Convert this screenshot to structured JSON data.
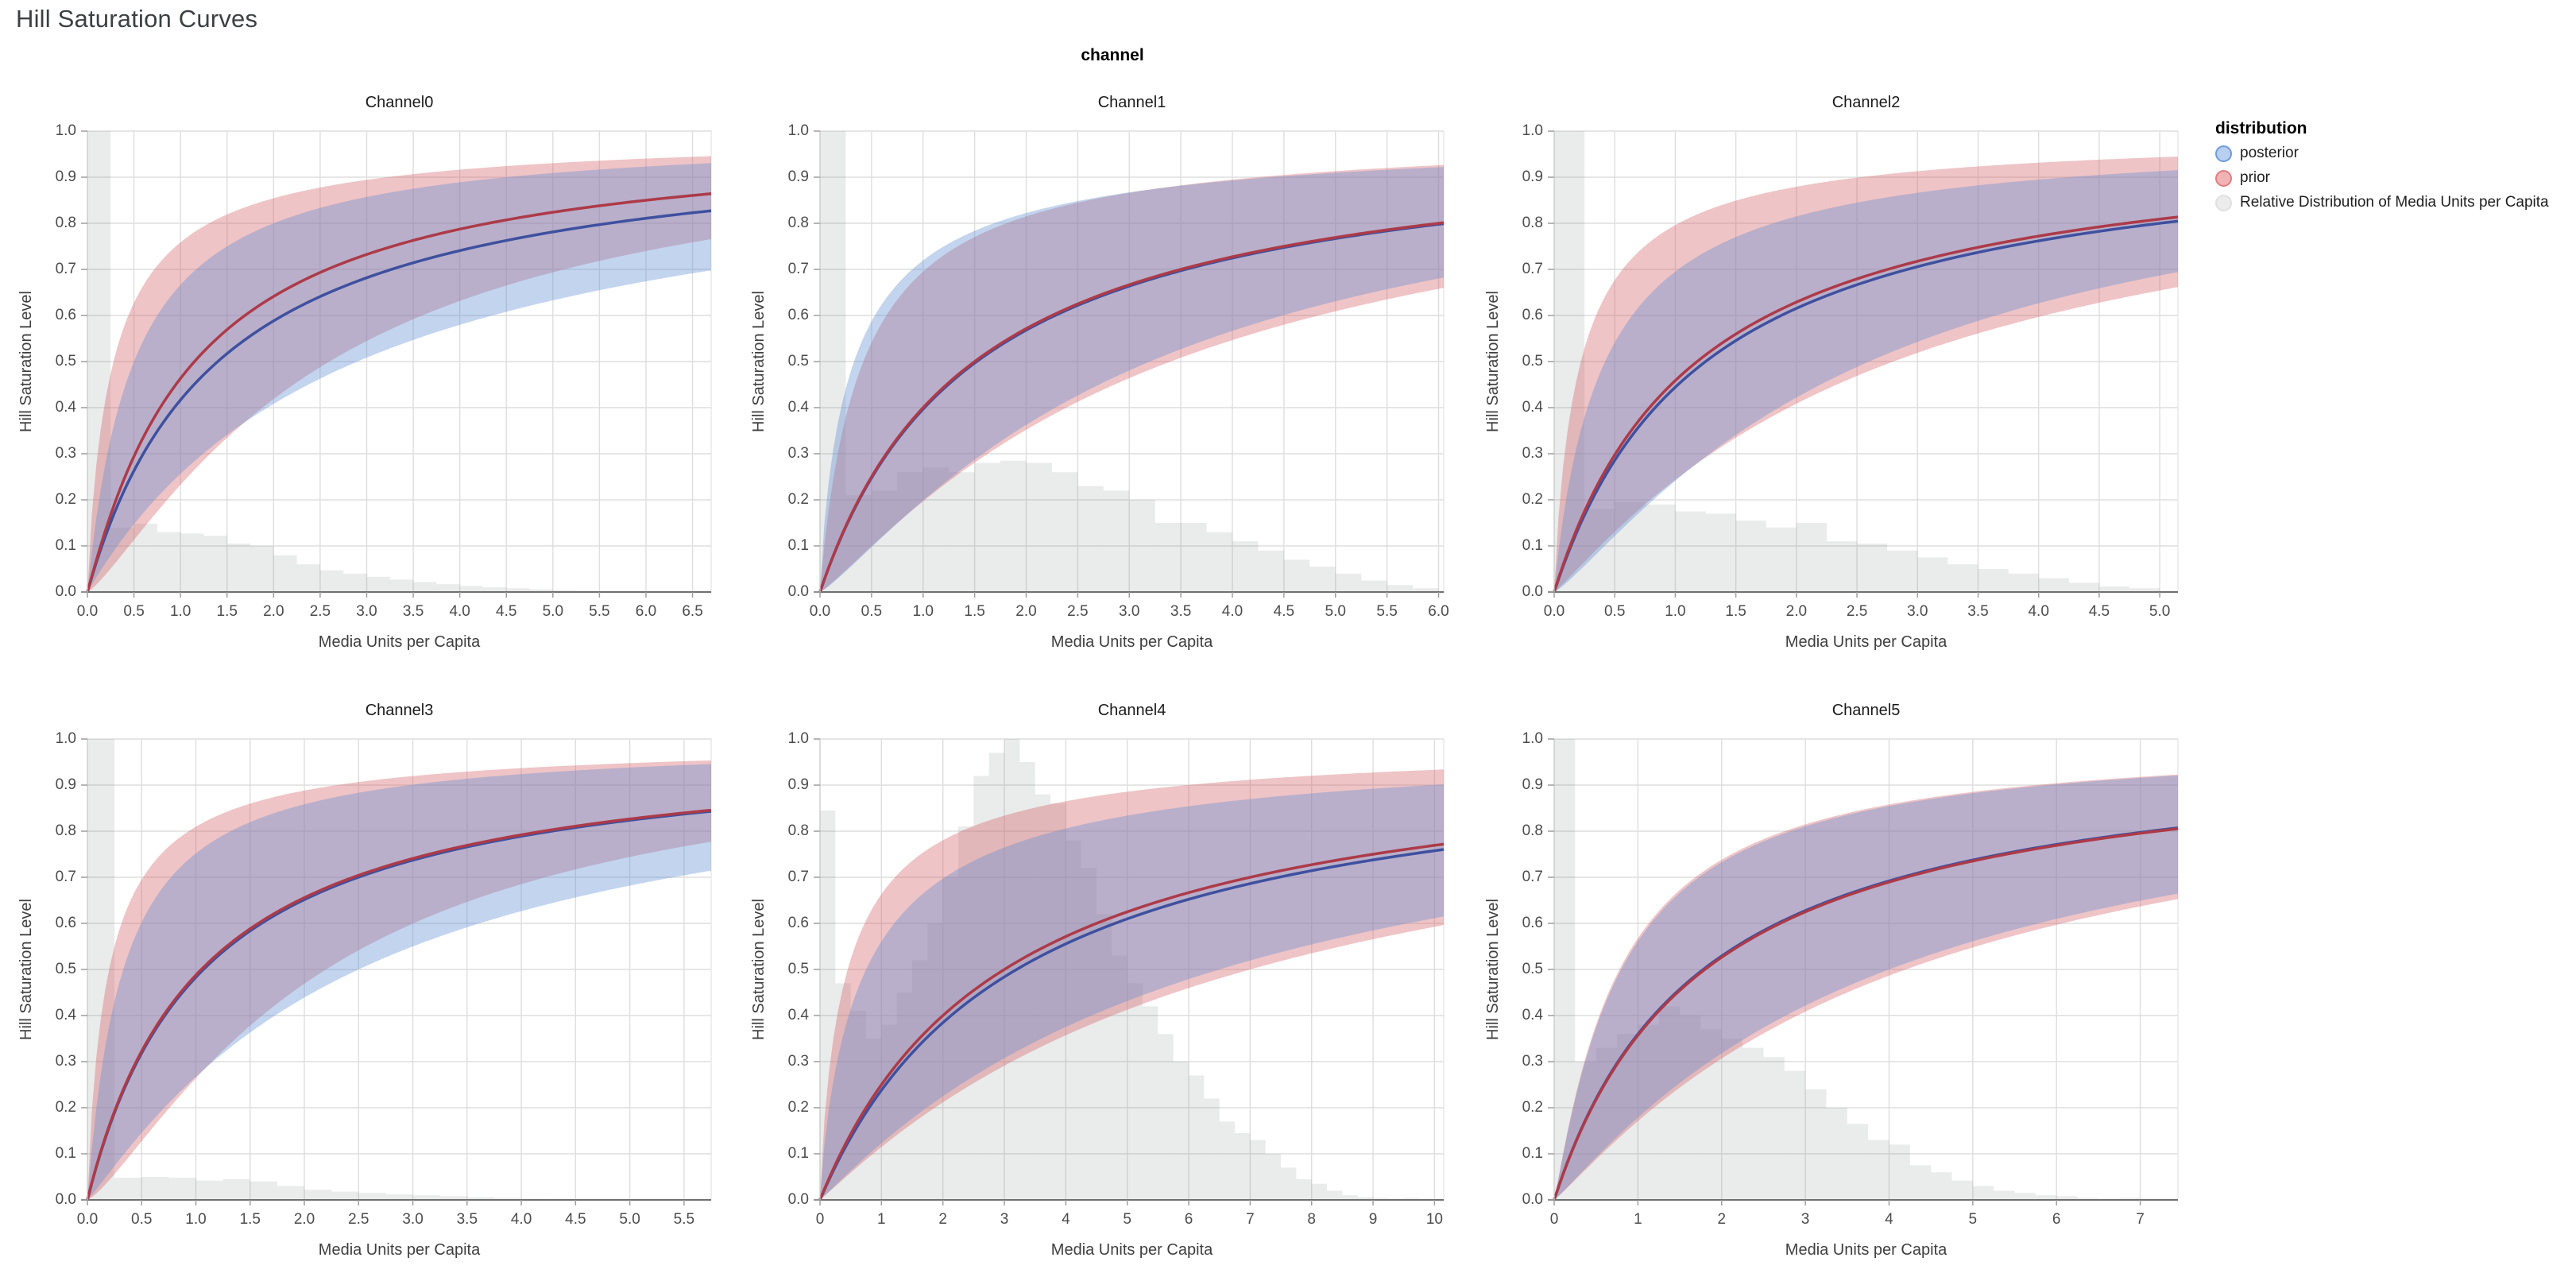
{
  "page_title": "Hill Saturation Curves",
  "facet_title": "channel",
  "axes": {
    "x_title": "Media Units per Capita",
    "y_title": "Hill Saturation Level",
    "y_ticks": [
      0.0,
      0.1,
      0.2,
      0.3,
      0.4,
      0.5,
      0.6,
      0.7,
      0.8,
      0.9,
      1.0
    ]
  },
  "legend": {
    "title": "distribution",
    "items": [
      {
        "label": "posterior",
        "fill": "#b9cff2",
        "stroke": "#6f9bdd"
      },
      {
        "label": "prior",
        "fill": "#f2b3b5",
        "stroke": "#e27d80"
      },
      {
        "label": "Relative Distribution of Media Units per Capita",
        "fill": "#ececec",
        "stroke": "#e0e0e0"
      }
    ]
  },
  "colors": {
    "posterior_line": "#3e509f",
    "prior_line": "#ad3a48",
    "posterior_band": "rgba(97,141,209,0.38)",
    "prior_band": "rgba(214,101,106,0.38)",
    "histogram_fill": "rgba(125,130,130,0.16)",
    "grid": "#dedede",
    "domain": "#6f6f6f",
    "axis_tick": "#9e9e9e",
    "view_border": "#dddddd"
  },
  "chart_data": [
    {
      "type": "line",
      "title": "Channel0",
      "xlabel": "Media Units per Capita",
      "ylabel": "Hill Saturation Level",
      "ylim": [
        0,
        1
      ],
      "x_max": 6.7,
      "x_tick_max": 6.5,
      "x_tick_step": 0.5,
      "x_decimals": 1,
      "curves": {
        "posterior_mean": {
          "ec": 1.4,
          "slope": 1.0
        },
        "prior_mean": {
          "ec": 1.15,
          "slope": 1.05
        },
        "posterior_upper": {
          "ec": 0.5,
          "slope": 1.0
        },
        "posterior_lower": {
          "ec": 2.9,
          "slope": 1.0
        },
        "prior_upper": {
          "ec": 0.28,
          "slope": 0.9
        },
        "prior_lower": {
          "ec": 2.6,
          "slope": 1.25
        }
      },
      "histogram": {
        "bin_width": 0.25,
        "heights": [
          1,
          0.14,
          0.148,
          0.13,
          0.127,
          0.122,
          0.105,
          0.1,
          0.08,
          0.06,
          0.047,
          0.04,
          0.033,
          0.027,
          0.022,
          0.017,
          0.013,
          0.01,
          0.008,
          0.006,
          0.004,
          0.002
        ]
      }
    },
    {
      "type": "line",
      "title": "Channel1",
      "xlabel": "Media Units per Capita",
      "ylabel": "Hill Saturation Level",
      "ylim": [
        0,
        1
      ],
      "x_max": 6.05,
      "x_tick_max": 6.0,
      "x_tick_step": 0.5,
      "x_decimals": 1,
      "curves": {
        "posterior_mean": {
          "ec": 1.52,
          "slope": 1.0
        },
        "prior_mean": {
          "ec": 1.5,
          "slope": 1.0
        },
        "posterior_upper": {
          "ec": 0.33,
          "slope": 0.85
        },
        "posterior_lower": {
          "ec": 3.2,
          "slope": 1.2
        },
        "prior_upper": {
          "ec": 0.42,
          "slope": 0.95
        },
        "prior_lower": {
          "ec": 3.4,
          "slope": 1.15
        }
      },
      "histogram": {
        "bin_width": 0.25,
        "heights": [
          1,
          0.21,
          0.22,
          0.26,
          0.27,
          0.26,
          0.28,
          0.285,
          0.28,
          0.26,
          0.23,
          0.22,
          0.2,
          0.15,
          0.15,
          0.13,
          0.11,
          0.09,
          0.07,
          0.055,
          0.04,
          0.025,
          0.015,
          0.008
        ]
      }
    },
    {
      "type": "line",
      "title": "Channel2",
      "xlabel": "Media Units per Capita",
      "ylabel": "Hill Saturation Level",
      "ylim": [
        0,
        1
      ],
      "x_max": 5.15,
      "x_tick_max": 5.0,
      "x_tick_step": 0.5,
      "x_decimals": 1,
      "curves": {
        "posterior_mean": {
          "ec": 1.25,
          "slope": 1.0
        },
        "prior_mean": {
          "ec": 1.18,
          "slope": 1.0
        },
        "posterior_upper": {
          "ec": 0.42,
          "slope": 0.95
        },
        "posterior_lower": {
          "ec": 2.6,
          "slope": 1.2
        },
        "prior_upper": {
          "ec": 0.22,
          "slope": 0.9
        },
        "prior_lower": {
          "ec": 2.8,
          "slope": 1.1
        }
      },
      "histogram": {
        "bin_width": 0.25,
        "heights": [
          1,
          0.18,
          0.195,
          0.19,
          0.175,
          0.17,
          0.155,
          0.14,
          0.15,
          0.11,
          0.105,
          0.09,
          0.075,
          0.06,
          0.05,
          0.04,
          0.03,
          0.02,
          0.012,
          0.008
        ]
      }
    },
    {
      "type": "line",
      "title": "Channel3",
      "xlabel": "Media Units per Capita",
      "ylabel": "Hill Saturation Level",
      "ylim": [
        0,
        1
      ],
      "x_max": 5.75,
      "x_tick_max": 5.5,
      "x_tick_step": 0.5,
      "x_decimals": 1,
      "curves": {
        "posterior_mean": {
          "ec": 1.07,
          "slope": 1.0
        },
        "prior_mean": {
          "ec": 1.05,
          "slope": 1.0
        },
        "posterior_upper": {
          "ec": 0.33,
          "slope": 1.0
        },
        "posterior_lower": {
          "ec": 2.5,
          "slope": 1.1
        },
        "prior_upper": {
          "ec": 0.2,
          "slope": 0.9
        },
        "prior_lower": {
          "ec": 2.2,
          "slope": 1.3
        }
      },
      "histogram": {
        "bin_width": 0.25,
        "heights": [
          1,
          0.048,
          0.05,
          0.048,
          0.042,
          0.045,
          0.04,
          0.03,
          0.022,
          0.018,
          0.015,
          0.012,
          0.01,
          0.008,
          0.006,
          0.004,
          0.003
        ]
      }
    },
    {
      "type": "line",
      "title": "Channel4",
      "xlabel": "Media Units per Capita",
      "ylabel": "Hill Saturation Level",
      "ylim": [
        0,
        1
      ],
      "x_max": 10.15,
      "x_tick_max": 10,
      "x_tick_step": 1,
      "x_decimals": 0,
      "curves": {
        "posterior_mean": {
          "ec": 3.2,
          "slope": 1.0
        },
        "prior_mean": {
          "ec": 3.0,
          "slope": 1.0
        },
        "posterior_upper": {
          "ec": 0.75,
          "slope": 0.85
        },
        "posterior_lower": {
          "ec": 6.5,
          "slope": 1.05
        },
        "prior_upper": {
          "ec": 0.45,
          "slope": 0.85
        },
        "prior_lower": {
          "ec": 7.0,
          "slope": 1.05
        }
      },
      "histogram": {
        "bin_width": 0.25,
        "heights": [
          0.845,
          0.47,
          0.41,
          0.35,
          0.38,
          0.45,
          0.52,
          0.6,
          0.7,
          0.81,
          0.92,
          0.97,
          1.0,
          0.95,
          0.88,
          0.86,
          0.78,
          0.72,
          0.62,
          0.53,
          0.47,
          0.42,
          0.36,
          0.3,
          0.27,
          0.22,
          0.17,
          0.145,
          0.13,
          0.1,
          0.07,
          0.045,
          0.035,
          0.02,
          0.01,
          0.006,
          0.004,
          0.002,
          0.004,
          0.002
        ]
      }
    },
    {
      "type": "line",
      "title": "Channel5",
      "xlabel": "Media Units per Capita",
      "ylabel": "Hill Saturation Level",
      "ylim": [
        0,
        1
      ],
      "x_max": 7.45,
      "x_tick_max": 7,
      "x_tick_step": 1,
      "x_decimals": 0,
      "curves": {
        "posterior_mean": {
          "ec": 1.78,
          "slope": 1.0
        },
        "prior_mean": {
          "ec": 1.8,
          "slope": 1.0
        },
        "posterior_upper": {
          "ec": 0.8,
          "slope": 1.1
        },
        "posterior_lower": {
          "ec": 4.0,
          "slope": 1.1
        },
        "prior_upper": {
          "ec": 0.78,
          "slope": 1.1
        },
        "prior_lower": {
          "ec": 4.2,
          "slope": 1.1
        }
      },
      "histogram": {
        "bin_width": 0.25,
        "heights": [
          1,
          0.3,
          0.33,
          0.36,
          0.38,
          0.42,
          0.4,
          0.37,
          0.35,
          0.33,
          0.31,
          0.28,
          0.24,
          0.2,
          0.165,
          0.13,
          0.12,
          0.075,
          0.06,
          0.042,
          0.03,
          0.02,
          0.015,
          0.01,
          0.008,
          0.004,
          0,
          0.004,
          0.002
        ]
      }
    }
  ]
}
